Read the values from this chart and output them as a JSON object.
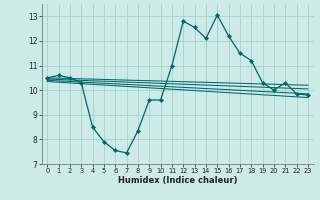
{
  "xlabel": "Humidex (Indice chaleur)",
  "background_color": "#cceae8",
  "grid_color": "#aed4d0",
  "line_color": "#006666",
  "xlim": [
    -0.5,
    23.5
  ],
  "ylim": [
    7,
    13.5
  ],
  "xticks": [
    0,
    1,
    2,
    3,
    4,
    5,
    6,
    7,
    8,
    9,
    10,
    11,
    12,
    13,
    14,
    15,
    16,
    17,
    18,
    19,
    20,
    21,
    22,
    23
  ],
  "yticks": [
    7,
    8,
    9,
    10,
    11,
    12,
    13
  ],
  "main_x": [
    0,
    1,
    2,
    3,
    4,
    5,
    6,
    7,
    8,
    9,
    10,
    11,
    12,
    13,
    14,
    15,
    16,
    17,
    18,
    19,
    20,
    21,
    22,
    23
  ],
  "main_y": [
    10.5,
    10.6,
    10.5,
    10.3,
    8.5,
    7.9,
    7.55,
    7.45,
    8.35,
    9.6,
    9.6,
    11.0,
    12.8,
    12.55,
    12.1,
    13.05,
    12.2,
    11.5,
    11.2,
    10.3,
    10.0,
    10.3,
    9.85,
    9.8
  ],
  "trend_lines": [
    {
      "x": [
        0,
        23
      ],
      "y": [
        10.5,
        10.2
      ]
    },
    {
      "x": [
        0,
        23
      ],
      "y": [
        10.45,
        10.05
      ]
    },
    {
      "x": [
        0,
        23
      ],
      "y": [
        10.4,
        9.85
      ]
    },
    {
      "x": [
        0,
        23
      ],
      "y": [
        10.35,
        9.7
      ]
    }
  ]
}
